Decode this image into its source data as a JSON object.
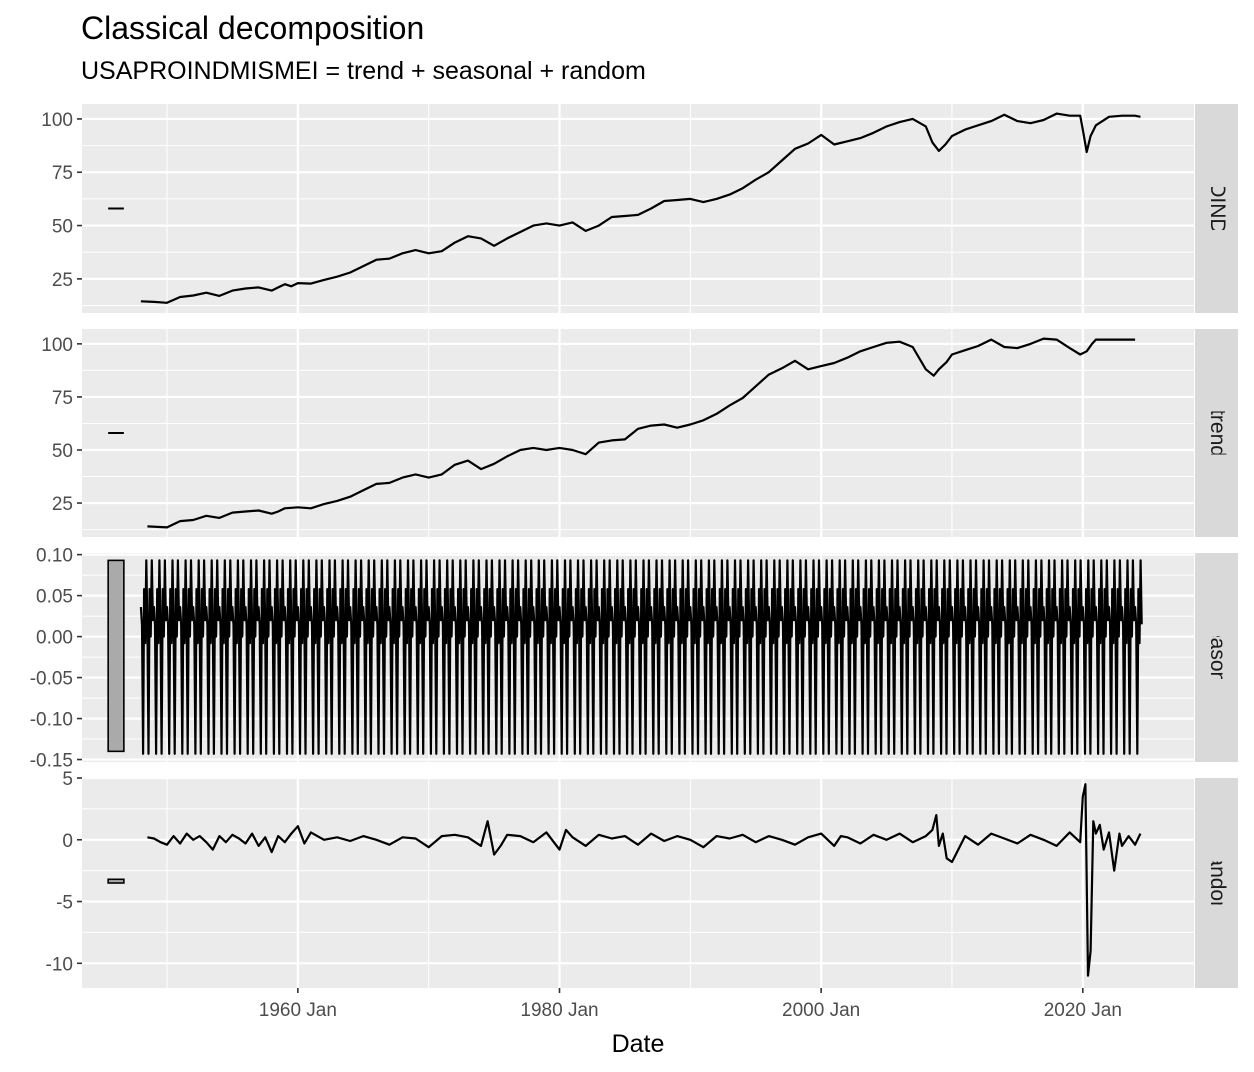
{
  "chart_data": {
    "type": "line",
    "title": "Classical decomposition",
    "subtitle": "USAPROINDMISMEI = trend + seasonal + random",
    "xlabel": "Date",
    "x_range": [
      1943.5,
      2028.5
    ],
    "x_ticks": [
      {
        "value": 1960,
        "label": "1960 Jan"
      },
      {
        "value": 1980,
        "label": "1980 Jan"
      },
      {
        "value": 2000,
        "label": "2000 Jan"
      },
      {
        "value": 2020,
        "label": "2020 Jan"
      }
    ],
    "grid": true,
    "scale_bar_x": [
      1945.5,
      1946.7
    ],
    "panels": [
      {
        "name": "USAPROINDMISMEI",
        "ylim": [
          9,
          107
        ],
        "y_ticks": [
          25,
          50,
          75,
          100
        ],
        "scale_bar": {
          "type": "line",
          "value": 58
        },
        "x": [
          1948.0,
          1949.0,
          1950.0,
          1951.0,
          1952.0,
          1953.0,
          1954.0,
          1955.0,
          1956.0,
          1957.0,
          1958.0,
          1958.5,
          1959.0,
          1959.5,
          1960.0,
          1961.0,
          1962.0,
          1963.0,
          1964.0,
          1965.0,
          1966.0,
          1967.0,
          1968.0,
          1969.0,
          1970.0,
          1971.0,
          1972.0,
          1973.0,
          1974.0,
          1975.0,
          1976.0,
          1977.0,
          1978.0,
          1979.0,
          1980.0,
          1981.0,
          1982.0,
          1983.0,
          1984.0,
          1985.0,
          1986.0,
          1987.0,
          1988.0,
          1989.0,
          1990.0,
          1991.0,
          1992.0,
          1993.0,
          1994.0,
          1995.0,
          1996.0,
          1997.0,
          1998.0,
          1999.0,
          2000.0,
          2001.0,
          2002.0,
          2003.0,
          2004.0,
          2005.0,
          2006.0,
          2007.0,
          2008.0,
          2008.5,
          2009.0,
          2009.5,
          2010.0,
          2011.0,
          2012.0,
          2013.0,
          2014.0,
          2015.0,
          2016.0,
          2017.0,
          2018.0,
          2019.0,
          2019.8,
          2020.0,
          2020.3,
          2020.6,
          2021.0,
          2022.0,
          2023.0,
          2024.0,
          2024.4
        ],
        "y": [
          14.5,
          14.2,
          13.8,
          16.5,
          17.2,
          18.5,
          17.0,
          19.5,
          20.5,
          21.0,
          19.5,
          21.0,
          22.5,
          21.5,
          23.0,
          22.8,
          24.5,
          26.0,
          28.0,
          31.0,
          34.0,
          34.5,
          37.0,
          38.5,
          37.0,
          38.0,
          42.0,
          45.0,
          44.0,
          40.5,
          44.0,
          47.0,
          50.0,
          51.0,
          50.0,
          51.5,
          47.5,
          50.0,
          54.0,
          54.5,
          55.0,
          58.0,
          61.5,
          62.0,
          62.5,
          61.0,
          62.5,
          64.5,
          67.5,
          71.5,
          75.0,
          80.5,
          86.0,
          88.5,
          92.5,
          88.0,
          89.5,
          91.0,
          93.5,
          96.5,
          98.5,
          100.0,
          96.5,
          89.0,
          85.0,
          88.0,
          92.0,
          95.0,
          97.0,
          99.0,
          102.0,
          99.0,
          98.0,
          99.5,
          102.5,
          101.5,
          101.5,
          95.0,
          84.5,
          92.0,
          97.0,
          101.0,
          101.5,
          101.5,
          101.0
        ]
      },
      {
        "name": "trend",
        "ylim": [
          9,
          107
        ],
        "y_ticks": [
          25,
          50,
          75,
          100
        ],
        "scale_bar": {
          "type": "line",
          "value": 58
        },
        "x": [
          1948.5,
          1950.0,
          1951.0,
          1952.0,
          1953.0,
          1954.0,
          1955.0,
          1956.0,
          1957.0,
          1958.0,
          1958.5,
          1959.0,
          1960.0,
          1961.0,
          1962.0,
          1963.0,
          1964.0,
          1965.0,
          1966.0,
          1967.0,
          1968.0,
          1969.0,
          1970.0,
          1971.0,
          1972.0,
          1973.0,
          1974.0,
          1975.0,
          1976.0,
          1977.0,
          1978.0,
          1979.0,
          1980.0,
          1981.0,
          1982.0,
          1983.0,
          1984.0,
          1985.0,
          1986.0,
          1987.0,
          1988.0,
          1989.0,
          1990.0,
          1991.0,
          1992.0,
          1993.0,
          1994.0,
          1995.0,
          1996.0,
          1997.0,
          1998.0,
          1999.0,
          2000.0,
          2001.0,
          2002.0,
          2003.0,
          2004.0,
          2005.0,
          2006.0,
          2007.0,
          2008.0,
          2008.6,
          2009.0,
          2009.6,
          2010.0,
          2011.0,
          2012.0,
          2013.0,
          2014.0,
          2015.0,
          2016.0,
          2017.0,
          2018.0,
          2019.0,
          2019.8,
          2020.3,
          2020.7,
          2021.0,
          2022.0,
          2023.0,
          2024.0
        ],
        "y": [
          14.0,
          13.5,
          16.5,
          17.0,
          19.0,
          18.0,
          20.5,
          21.0,
          21.5,
          20.0,
          21.0,
          22.5,
          23.0,
          22.5,
          24.5,
          26.0,
          28.0,
          31.0,
          34.0,
          34.5,
          37.0,
          38.5,
          37.0,
          38.5,
          43.0,
          45.0,
          41.0,
          43.5,
          47.0,
          50.0,
          51.0,
          50.0,
          51.0,
          50.0,
          48.0,
          53.5,
          54.5,
          55.0,
          60.0,
          61.5,
          62.0,
          60.5,
          62.0,
          64.0,
          67.0,
          71.0,
          74.5,
          80.0,
          85.5,
          88.5,
          92.0,
          88.0,
          89.5,
          91.0,
          93.5,
          96.5,
          98.5,
          100.5,
          101.0,
          98.5,
          88.0,
          85.0,
          88.0,
          91.5,
          95.0,
          97.0,
          99.0,
          102.0,
          98.5,
          98.0,
          100.0,
          102.5,
          102.0,
          98.0,
          95.0,
          96.5,
          100.0,
          102.0,
          102.0,
          102.0,
          102.0
        ]
      },
      {
        "name": "seasonal",
        "ylim": [
          -0.153,
          0.102
        ],
        "y_ticks": [
          -0.15,
          -0.1,
          -0.05,
          0.0,
          0.05,
          0.1
        ],
        "y_tick_labels": [
          "-0.15",
          "-0.10",
          "-0.05",
          "0.00",
          "0.05",
          "0.10"
        ],
        "scale_bar": {
          "type": "box",
          "min": -0.14,
          "max": 0.093
        },
        "x_start": 1948.0,
        "x_end": 2024.5,
        "period_years": 1,
        "pattern": [
          0.036,
          0.014,
          -0.143,
          0.058,
          -0.008,
          0.093,
          0.015,
          -0.143,
          0.058,
          0.0,
          0.093,
          0.02
        ]
      },
      {
        "name": "random",
        "ylim": [
          -12,
          5
        ],
        "y_ticks": [
          -10,
          -5,
          0,
          5
        ],
        "scale_bar": {
          "type": "box",
          "min": -3.5,
          "max": -3.2
        },
        "x": [
          1948.5,
          1949.0,
          1949.5,
          1950.0,
          1950.5,
          1951.0,
          1951.5,
          1952.0,
          1952.5,
          1953.0,
          1953.5,
          1954.0,
          1954.5,
          1955.0,
          1955.5,
          1956.0,
          1956.5,
          1957.0,
          1957.5,
          1958.0,
          1958.5,
          1959.0,
          1959.5,
          1960.0,
          1960.5,
          1961.0,
          1962.0,
          1963.0,
          1964.0,
          1965.0,
          1966.0,
          1967.0,
          1968.0,
          1969.0,
          1970.0,
          1971.0,
          1972.0,
          1973.0,
          1974.0,
          1974.5,
          1975.0,
          1975.5,
          1976.0,
          1977.0,
          1978.0,
          1979.0,
          1980.0,
          1980.5,
          1981.0,
          1982.0,
          1983.0,
          1984.0,
          1985.0,
          1986.0,
          1987.0,
          1988.0,
          1989.0,
          1990.0,
          1991.0,
          1992.0,
          1993.0,
          1994.0,
          1995.0,
          1996.0,
          1997.0,
          1998.0,
          1999.0,
          2000.0,
          2001.0,
          2001.5,
          2002.0,
          2003.0,
          2004.0,
          2005.0,
          2006.0,
          2007.0,
          2008.0,
          2008.5,
          2008.8,
          2009.0,
          2009.3,
          2009.6,
          2010.0,
          2011.0,
          2012.0,
          2013.0,
          2014.0,
          2015.0,
          2016.0,
          2017.0,
          2018.0,
          2019.0,
          2019.8,
          2020.0,
          2020.2,
          2020.4,
          2020.6,
          2020.8,
          2021.0,
          2021.3,
          2021.6,
          2022.0,
          2022.4,
          2022.8,
          2023.0,
          2023.5,
          2024.0,
          2024.4
        ],
        "y": [
          0.2,
          0.1,
          -0.2,
          -0.4,
          0.3,
          -0.3,
          0.5,
          0.0,
          0.3,
          -0.2,
          -0.8,
          0.3,
          -0.2,
          0.4,
          0.1,
          -0.3,
          0.5,
          -0.5,
          0.2,
          -1.0,
          0.3,
          -0.2,
          0.5,
          1.1,
          -0.3,
          0.6,
          0.0,
          0.2,
          -0.1,
          0.3,
          0.0,
          -0.4,
          0.2,
          0.1,
          -0.6,
          0.3,
          0.4,
          0.2,
          -0.5,
          1.5,
          -1.2,
          -0.5,
          0.4,
          0.3,
          -0.2,
          0.6,
          -0.8,
          0.8,
          0.2,
          -0.5,
          0.4,
          0.1,
          0.3,
          -0.4,
          0.5,
          -0.1,
          0.3,
          0.0,
          -0.6,
          0.3,
          0.1,
          0.4,
          -0.2,
          0.3,
          0.0,
          -0.4,
          0.2,
          0.5,
          -0.5,
          0.3,
          0.2,
          -0.3,
          0.4,
          0.0,
          0.5,
          -0.2,
          0.3,
          0.8,
          2.0,
          -0.5,
          0.5,
          -1.5,
          -1.8,
          0.3,
          -0.4,
          0.5,
          0.1,
          -0.3,
          0.4,
          0.0,
          -0.5,
          0.6,
          -0.2,
          3.5,
          4.5,
          -11.0,
          -9.0,
          1.5,
          0.5,
          1.2,
          -0.8,
          0.6,
          -2.5,
          0.5,
          -0.5,
          0.3,
          -0.4,
          0.5
        ]
      }
    ]
  }
}
